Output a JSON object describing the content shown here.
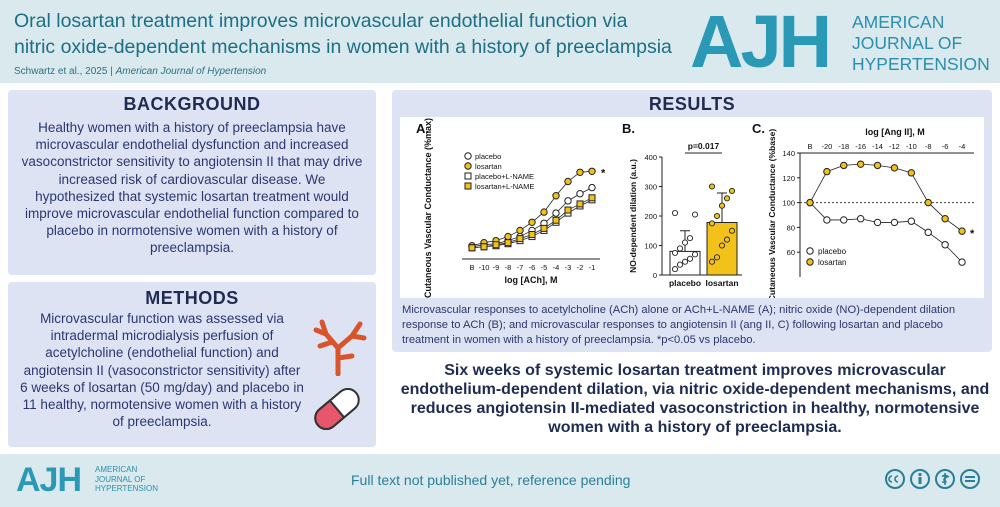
{
  "header": {
    "title": "Oral losartan treatment improves microvascular endothelial function via nitric oxide-dependent mechanisms in women with a history of preeclampsia",
    "citation_authors": "Schwartz et al., 2025",
    "citation_sep": "|",
    "citation_journal": "American Journal of Hypertension",
    "logo": "AJH",
    "logo_line1": "AMERICAN",
    "logo_line2": "JOURNAL OF",
    "logo_line3": "HYPERTENSION"
  },
  "background": {
    "heading": "BACKGROUND",
    "text": "Healthy women with a history of preeclampsia have microvascular endothelial dysfunction and increased vasoconstrictor sensitivity to angiotensin II that may drive increased risk of cardiovascular disease. We hypothesized that systemic losartan treatment would improve microvascular endothelial function compared to placebo in normotensive women with a history of preeclampsia."
  },
  "methods": {
    "heading": "METHODS",
    "text": "Microvascular function was assessed via intradermal microdialysis perfusion of acetylcholine (endothelial function) and angiotensin II (vasoconstrictor sensitivity) after 6 weeks of losartan (50 mg/day) and placebo in 11 healthy, normotensive women with a history of preeclampsia."
  },
  "results": {
    "heading": "RESULTS",
    "caption": "Microvascular responses to acetylcholine (ACh) alone or ACh+L-NAME (A); nitric oxide (NO)-dependent dilation response to ACh (B); and microvascular responses to angiotensin II (ang II, C) following losartan and placebo treatment in women with a history of preeclampsia. *p<0.05 vs placebo."
  },
  "conclusion": "Six weeks of systemic losartan treatment improves microvascular endothelium-dependent dilation, via nitric oxide-dependent mechanisms, and reduces angiotensin II-mediated vasoconstriction in healthy, normotensive women with a history of preeclampsia.",
  "footer": {
    "logo": "AJH",
    "logo_line1": "AMERICAN",
    "logo_line2": "JOURNAL OF",
    "logo_line3": "HYPERTENSION",
    "text": "Full text not published yet, reference pending"
  },
  "colors": {
    "placebo": "#ffffff",
    "losartan": "#f2c21a",
    "header_bg": "#d9e9ee",
    "panel_bg": "#dde3f2",
    "logo": "#2a99b5"
  },
  "chart_data": [
    {
      "type": "line",
      "panel_label": "A.",
      "xlabel": "log [ACh], M",
      "ylabel": "Cutaneous Vascular Conductance (%max)",
      "categories": [
        "B",
        "-10",
        "-9",
        "-8",
        "-7",
        "-6",
        "-5",
        "-4",
        "-3",
        "-2",
        "-1"
      ],
      "ylim": [
        0,
        100
      ],
      "yticks": [
        "0",
        "20",
        "40",
        "60",
        "80",
        "100"
      ],
      "series": [
        {
          "name": "placebo",
          "marker": "circle-open",
          "values": [
            12,
            14,
            15,
            18,
            22,
            28,
            35,
            45,
            57,
            64,
            70
          ]
        },
        {
          "name": "losartan",
          "marker": "circle-filled",
          "values": [
            13,
            16,
            18,
            22,
            28,
            36,
            46,
            62,
            76,
            85,
            86
          ]
        },
        {
          "name": "placebo+L-NAME",
          "marker": "square-open",
          "values": [
            11,
            12,
            13,
            15,
            18,
            22,
            28,
            36,
            45,
            52,
            58
          ]
        },
        {
          "name": "losartan+L-NAME",
          "marker": "square-filled",
          "values": [
            11,
            12,
            14,
            16,
            20,
            24,
            30,
            38,
            48,
            54,
            60
          ]
        }
      ],
      "annotations": [
        "*"
      ]
    },
    {
      "type": "bar",
      "panel_label": "B.",
      "ylabel": "NO-dependent dilation (a.u.)",
      "categories": [
        "placebo",
        "losartan"
      ],
      "values": [
        80,
        178
      ],
      "errors": [
        70,
        100
      ],
      "ylim": [
        0,
        400
      ],
      "yticks": [
        "0",
        "100",
        "200",
        "300",
        "400"
      ],
      "annotation": "p=0.017",
      "points": [
        [
          20,
          35,
          45,
          55,
          70,
          75,
          90,
          110,
          125,
          205,
          210
        ],
        [
          45,
          60,
          100,
          120,
          150,
          175,
          200,
          235,
          260,
          285,
          300
        ]
      ]
    },
    {
      "type": "line",
      "panel_label": "C.",
      "xlabel": "log [Ang II], M",
      "ylabel": "Cutaneous Vascular Conductance (%base)",
      "categories": [
        "B",
        "-20",
        "-18",
        "-16",
        "-14",
        "-12",
        "-10",
        "-8",
        "-6",
        "-4"
      ],
      "ylim": [
        40,
        140
      ],
      "yticks": [
        "60",
        "80",
        "100",
        "120",
        "140"
      ],
      "reference_line": 100,
      "series": [
        {
          "name": "placebo",
          "marker": "circle-open",
          "values": [
            100,
            86,
            86,
            87,
            84,
            84,
            85,
            76,
            66,
            52
          ]
        },
        {
          "name": "losartan",
          "marker": "circle-filled",
          "values": [
            100,
            125,
            130,
            131,
            130,
            128,
            124,
            100,
            87,
            77
          ]
        }
      ],
      "annotations": [
        "*"
      ]
    }
  ]
}
